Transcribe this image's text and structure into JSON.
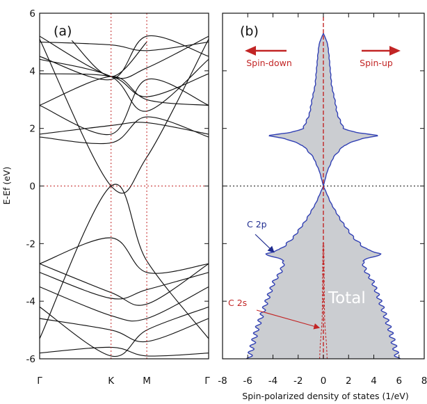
{
  "chart_data": [
    {
      "panel": "(a)",
      "type": "line",
      "ylabel": "E-Ef (eV)",
      "ylim": [
        -6,
        6
      ],
      "y_ticks": [
        "-6",
        "-4",
        "-2",
        "0",
        "2",
        "4",
        "6"
      ],
      "x_ticks": [
        "Γ",
        "K",
        "M",
        "Γ"
      ],
      "x_tick_positions": [
        0,
        1,
        1.5,
        2.366
      ],
      "series": [
        {
          "x": [
            0,
            1,
            1.5,
            2.366
          ],
          "values": [
            -5.3,
            0.0,
            -2.6,
            -5.3
          ]
        },
        {
          "x": [
            0,
            1,
            1.5,
            2.366
          ],
          "values": [
            5.1,
            0.0,
            1.0,
            5.1
          ]
        },
        {
          "x": [
            0,
            1,
            1.5,
            2.366
          ],
          "values": [
            -2.7,
            -1.8,
            -3.0,
            -2.7
          ]
        },
        {
          "x": [
            0,
            1,
            1.5,
            2.366
          ],
          "values": [
            -2.7,
            -3.7,
            -4.1,
            -2.7
          ]
        },
        {
          "x": [
            0,
            1,
            1.5,
            2.366
          ],
          "values": [
            -3.0,
            -3.9,
            -3.6,
            -3.0
          ]
        },
        {
          "x": [
            0,
            1,
            1.5,
            2.366
          ],
          "values": [
            -3.5,
            -4.5,
            -4.6,
            -3.5
          ]
        },
        {
          "x": [
            0,
            1,
            1.5,
            2.366
          ],
          "values": [
            -4.6,
            -5.0,
            -5.4,
            -4.6
          ]
        },
        {
          "x": [
            0,
            1,
            1.5,
            2.366
          ],
          "values": [
            -5.8,
            -5.6,
            -5.9,
            -5.8
          ]
        },
        {
          "x": [
            0,
            1,
            1.5,
            2.366
          ],
          "values": [
            -4.2,
            -5.9,
            -5.0,
            -4.2
          ]
        },
        {
          "x": [
            0,
            1,
            1.5,
            2.366
          ],
          "values": [
            1.7,
            1.5,
            2.4,
            1.7
          ]
        },
        {
          "x": [
            0,
            1,
            1.5,
            2.366
          ],
          "values": [
            2.8,
            1.8,
            3.7,
            2.8
          ]
        },
        {
          "x": [
            0,
            1,
            1.5,
            2.366
          ],
          "values": [
            2.8,
            3.8,
            3.0,
            2.8
          ]
        },
        {
          "x": [
            0,
            1,
            1.5,
            2.366
          ],
          "values": [
            3.9,
            3.8,
            3.1,
            3.9
          ]
        },
        {
          "x": [
            0,
            1,
            1.5,
            2.366
          ],
          "values": [
            4.4,
            3.8,
            2.6,
            4.4
          ]
        },
        {
          "x": [
            0,
            1,
            1.5,
            2.366
          ],
          "values": [
            5.2,
            3.8,
            4.1,
            5.2
          ]
        },
        {
          "x": [
            0,
            1,
            1.5,
            2.366
          ],
          "values": [
            4.5,
            3.7,
            5.2,
            4.5
          ]
        },
        {
          "x": [
            0,
            1,
            1.5,
            2.366
          ],
          "values": [
            1.8,
            2.1,
            2.2,
            1.8
          ]
        },
        {
          "x": [
            0,
            1,
            1.5,
            2.366
          ],
          "values": [
            5.0,
            4.9,
            4.7,
            5.0
          ]
        },
        {
          "x": [
            0.45,
            1,
            1.5
          ],
          "values": [
            5.05,
            3.8,
            5.0
          ]
        }
      ]
    },
    {
      "panel": "(b)",
      "type": "area",
      "xlabel": "Spin-polarized density of states (1/eV)",
      "xlim": [
        -8,
        8
      ],
      "x_ticks": [
        "-8",
        "-6",
        "-4",
        "-2",
        "0",
        "2",
        "4",
        "6",
        "8"
      ],
      "ylim": [
        -6,
        6
      ],
      "annotations": [
        "Spin-down",
        "Spin-up",
        "C 2p",
        "C 2s",
        "Total"
      ],
      "total_dos": {
        "energy": [
          -6.0,
          -5.0,
          -4.0,
          -3.3,
          -3.0,
          -2.6,
          -2.35,
          -2.2,
          -1.8,
          -1.2,
          -0.6,
          0.0,
          0.5,
          1.0,
          1.4,
          1.65,
          1.75,
          1.85,
          2.0,
          2.5,
          3.0,
          3.5,
          4.0,
          4.5,
          4.9,
          5.1,
          5.3
        ],
        "dos": [
          5.9,
          5.3,
          4.5,
          3.9,
          3.4,
          3.1,
          4.6,
          3.4,
          2.4,
          1.4,
          0.6,
          0.0,
          0.3,
          0.8,
          1.6,
          3.0,
          4.6,
          2.6,
          1.6,
          1.1,
          0.9,
          0.65,
          0.55,
          0.45,
          0.35,
          0.2,
          0.0
        ]
      },
      "c2s_dos": {
        "energy": [
          -6.0,
          -5.5,
          -5.0,
          -4.6,
          -4.0,
          -3.0,
          -2.0
        ],
        "dos": [
          0.3,
          0.25,
          0.15,
          0.1,
          0.08,
          0.06,
          0.04
        ]
      }
    }
  ]
}
